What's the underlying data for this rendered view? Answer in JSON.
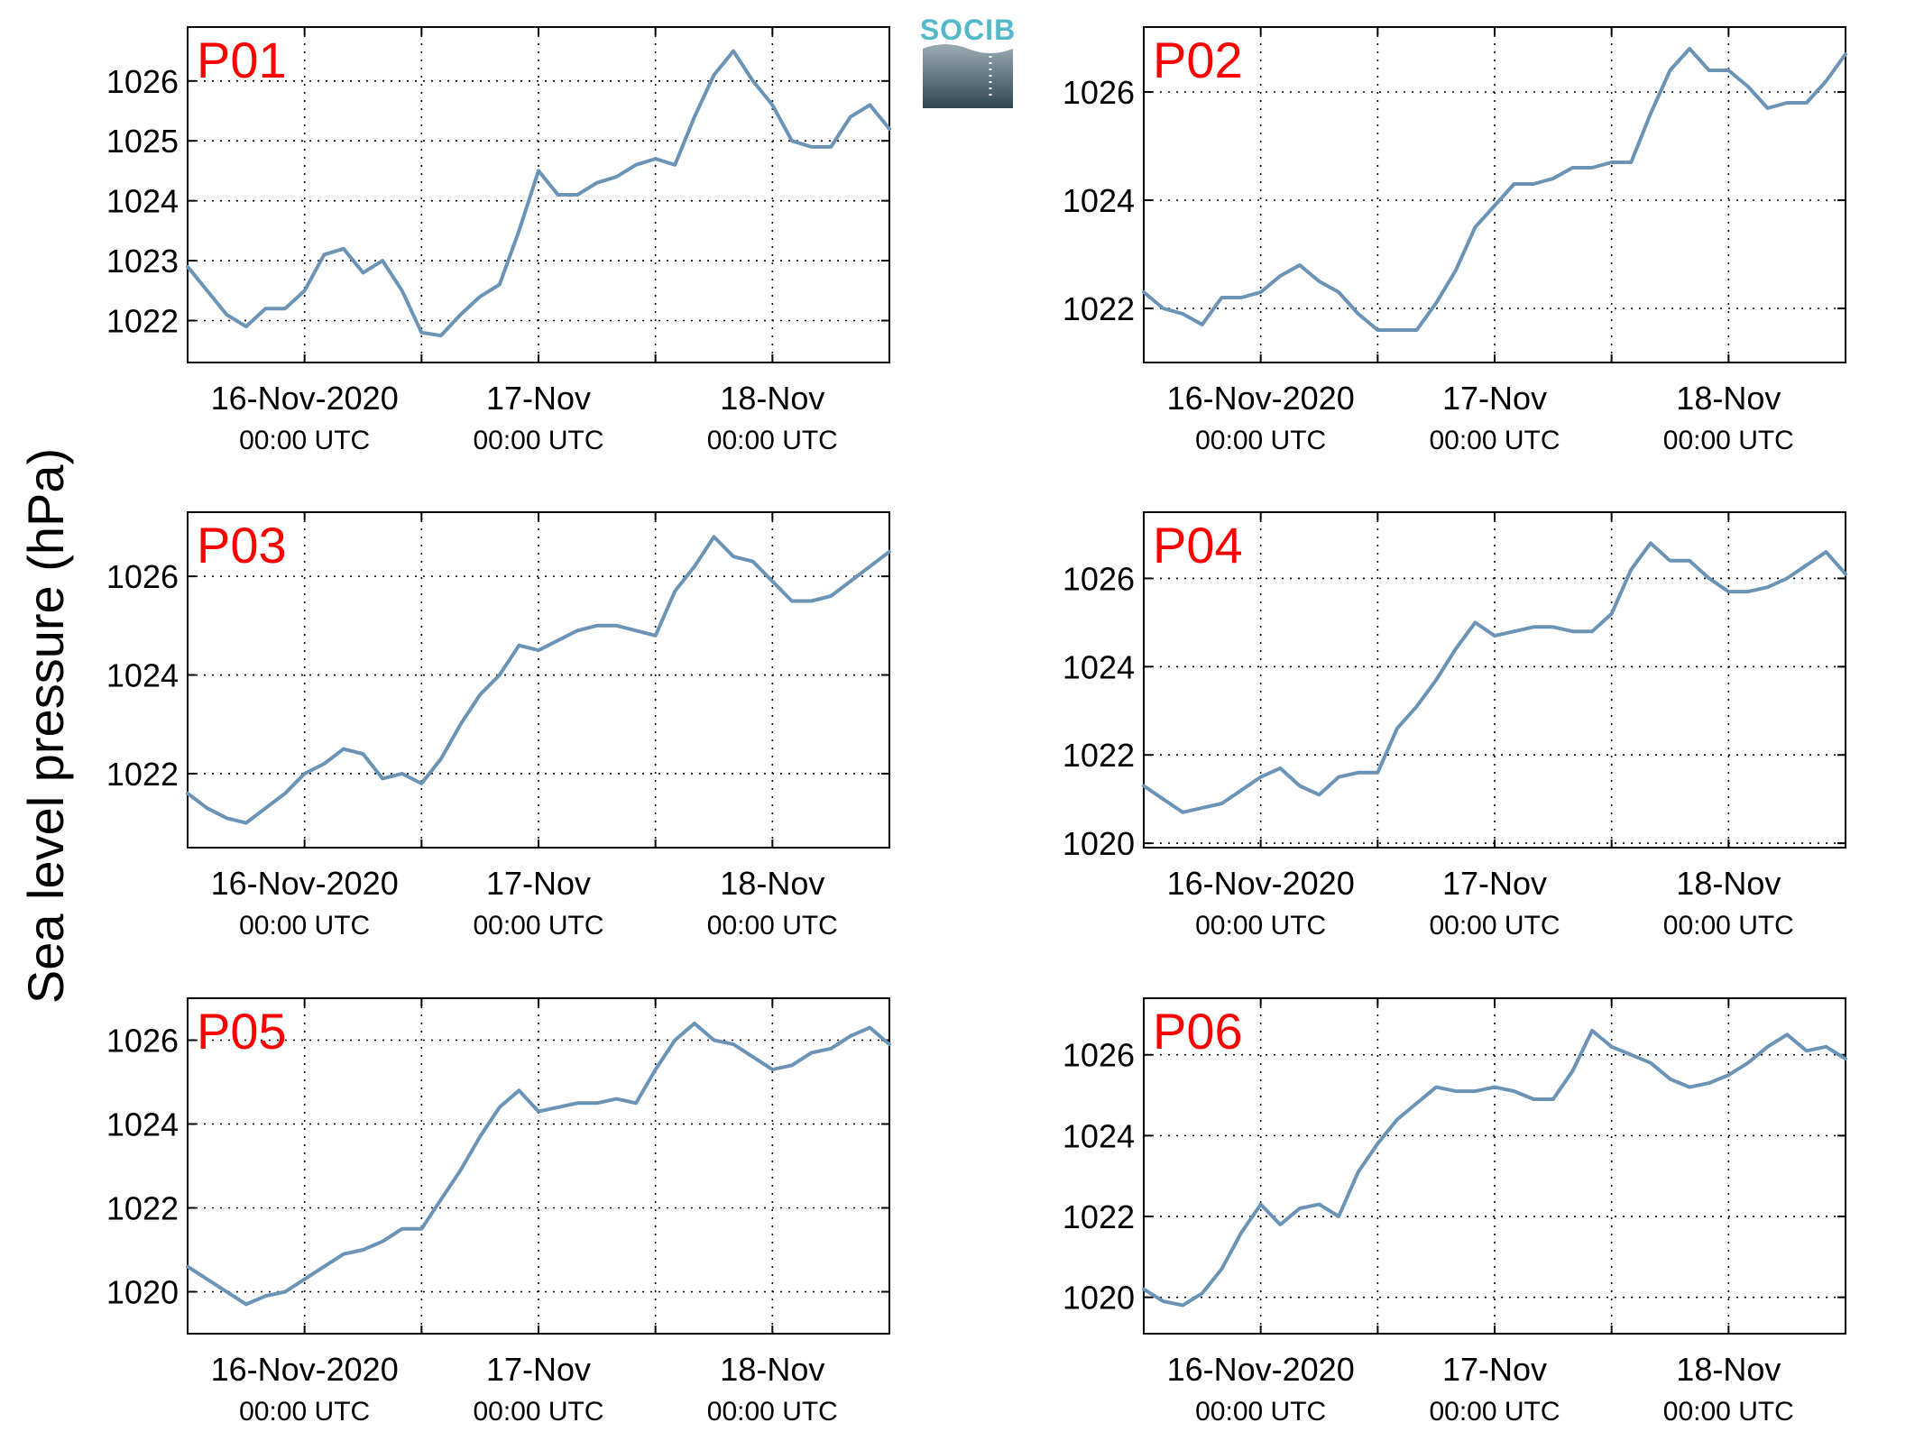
{
  "figure": {
    "ylabel": "Sea level pressure (hPa)",
    "logo_text": "SOCIB",
    "series_color": "#6a93b5",
    "panel_label_color": "#ff0000"
  },
  "chart_data": [
    {
      "type": "line",
      "panel": "P01",
      "x_ticks": [
        {
          "main": "16-Nov-2020",
          "sub": "00:00 UTC"
        },
        {
          "main": "17-Nov",
          "sub": "00:00 UTC"
        },
        {
          "main": "18-Nov",
          "sub": "00:00 UTC"
        }
      ],
      "y_ticks": [
        1022,
        1023,
        1024,
        1025,
        1026
      ],
      "ylim": [
        1021.3,
        1026.9
      ],
      "xlim_hours": [
        -12,
        60
      ],
      "grid": true,
      "x_hours": [
        -12,
        -10,
        -8,
        -6,
        -4,
        -2,
        0,
        2,
        4,
        6,
        8,
        10,
        12,
        14,
        16,
        18,
        20,
        22,
        24,
        26,
        28,
        30,
        32,
        34,
        36,
        38,
        40,
        42,
        44,
        46,
        48,
        50,
        52,
        54,
        56,
        58,
        60
      ],
      "values": [
        1022.9,
        1022.5,
        1022.1,
        1021.9,
        1022.2,
        1022.2,
        1022.5,
        1023.1,
        1023.2,
        1022.8,
        1023.0,
        1022.5,
        1021.8,
        1021.75,
        1022.1,
        1022.4,
        1022.6,
        1023.5,
        1024.5,
        1024.1,
        1024.1,
        1024.3,
        1024.4,
        1024.6,
        1024.7,
        1024.6,
        1025.4,
        1026.1,
        1026.5,
        1026.0,
        1025.6,
        1025.0,
        1024.9,
        1024.9,
        1025.4,
        1025.6,
        1025.2
      ]
    },
    {
      "type": "line",
      "panel": "P02",
      "x_ticks": [
        {
          "main": "16-Nov-2020",
          "sub": "00:00 UTC"
        },
        {
          "main": "17-Nov",
          "sub": "00:00 UTC"
        },
        {
          "main": "18-Nov",
          "sub": "00:00 UTC"
        }
      ],
      "y_ticks": [
        1022,
        1024,
        1026
      ],
      "ylim": [
        1021.0,
        1027.2
      ],
      "xlim_hours": [
        -12,
        60
      ],
      "grid": true,
      "x_hours": [
        -12,
        -10,
        -8,
        -6,
        -4,
        -2,
        0,
        2,
        4,
        6,
        8,
        10,
        12,
        14,
        16,
        18,
        20,
        22,
        24,
        26,
        28,
        30,
        32,
        34,
        36,
        38,
        40,
        42,
        44,
        46,
        48,
        50,
        52,
        54,
        56,
        58,
        60
      ],
      "values": [
        1022.3,
        1022.0,
        1021.9,
        1021.7,
        1022.2,
        1022.2,
        1022.3,
        1022.6,
        1022.8,
        1022.5,
        1022.3,
        1021.9,
        1021.6,
        1021.6,
        1021.6,
        1022.1,
        1022.7,
        1023.5,
        1023.9,
        1024.3,
        1024.3,
        1024.4,
        1024.6,
        1024.6,
        1024.7,
        1024.7,
        1025.6,
        1026.4,
        1026.8,
        1026.4,
        1026.4,
        1026.1,
        1025.7,
        1025.8,
        1025.8,
        1026.2,
        1026.7
      ]
    },
    {
      "type": "line",
      "panel": "P03",
      "x_ticks": [
        {
          "main": "16-Nov-2020",
          "sub": "00:00 UTC"
        },
        {
          "main": "17-Nov",
          "sub": "00:00 UTC"
        },
        {
          "main": "18-Nov",
          "sub": "00:00 UTC"
        }
      ],
      "y_ticks": [
        1022,
        1024,
        1026
      ],
      "ylim": [
        1020.5,
        1027.3
      ],
      "xlim_hours": [
        -12,
        60
      ],
      "grid": true,
      "x_hours": [
        -12,
        -10,
        -8,
        -6,
        -4,
        -2,
        0,
        2,
        4,
        6,
        8,
        10,
        12,
        14,
        16,
        18,
        20,
        22,
        24,
        26,
        28,
        30,
        32,
        34,
        36,
        38,
        40,
        42,
        44,
        46,
        48,
        50,
        52,
        54,
        56,
        58,
        60
      ],
      "values": [
        1021.6,
        1021.3,
        1021.1,
        1021.0,
        1021.3,
        1021.6,
        1022.0,
        1022.2,
        1022.5,
        1022.4,
        1021.9,
        1022.0,
        1021.8,
        1022.3,
        1023.0,
        1023.6,
        1024.0,
        1024.6,
        1024.5,
        1024.7,
        1024.9,
        1025.0,
        1025.0,
        1024.9,
        1024.8,
        1025.7,
        1026.2,
        1026.8,
        1026.4,
        1026.3,
        1025.9,
        1025.5,
        1025.5,
        1025.6,
        1025.9,
        1026.2,
        1026.5
      ]
    },
    {
      "type": "line",
      "panel": "P04",
      "x_ticks": [
        {
          "main": "16-Nov-2020",
          "sub": "00:00 UTC"
        },
        {
          "main": "17-Nov",
          "sub": "00:00 UTC"
        },
        {
          "main": "18-Nov",
          "sub": "00:00 UTC"
        }
      ],
      "y_ticks": [
        1020,
        1022,
        1024,
        1026
      ],
      "ylim": [
        1019.9,
        1027.5
      ],
      "xlim_hours": [
        -12,
        60
      ],
      "grid": true,
      "x_hours": [
        -12,
        -10,
        -8,
        -6,
        -4,
        -2,
        0,
        2,
        4,
        6,
        8,
        10,
        12,
        14,
        16,
        18,
        20,
        22,
        24,
        26,
        28,
        30,
        32,
        34,
        36,
        38,
        40,
        42,
        44,
        46,
        48,
        50,
        52,
        54,
        56,
        58,
        60
      ],
      "values": [
        1021.3,
        1021.0,
        1020.7,
        1020.8,
        1020.9,
        1021.2,
        1021.5,
        1021.7,
        1021.3,
        1021.1,
        1021.5,
        1021.6,
        1021.6,
        1022.6,
        1023.1,
        1023.7,
        1024.4,
        1025.0,
        1024.7,
        1024.8,
        1024.9,
        1024.9,
        1024.8,
        1024.8,
        1025.2,
        1026.2,
        1026.8,
        1026.4,
        1026.4,
        1026.0,
        1025.7,
        1025.7,
        1025.8,
        1026.0,
        1026.3,
        1026.6,
        1026.1
      ]
    },
    {
      "type": "line",
      "panel": "P05",
      "x_ticks": [
        {
          "main": "16-Nov-2020",
          "sub": "00:00 UTC"
        },
        {
          "main": "17-Nov",
          "sub": "00:00 UTC"
        },
        {
          "main": "18-Nov",
          "sub": "00:00 UTC"
        }
      ],
      "y_ticks": [
        1020,
        1022,
        1024,
        1026
      ],
      "ylim": [
        1019.0,
        1027.0
      ],
      "xlim_hours": [
        -12,
        60
      ],
      "grid": true,
      "x_hours": [
        -12,
        -10,
        -8,
        -6,
        -4,
        -2,
        0,
        2,
        4,
        6,
        8,
        10,
        12,
        14,
        16,
        18,
        20,
        22,
        24,
        26,
        28,
        30,
        32,
        34,
        36,
        38,
        40,
        42,
        44,
        46,
        48,
        50,
        52,
        54,
        56,
        58,
        60
      ],
      "values": [
        1020.6,
        1020.3,
        1020.0,
        1019.7,
        1019.9,
        1020.0,
        1020.3,
        1020.6,
        1020.9,
        1021.0,
        1021.2,
        1021.5,
        1021.5,
        1022.2,
        1022.9,
        1023.7,
        1024.4,
        1024.8,
        1024.3,
        1024.4,
        1024.5,
        1024.5,
        1024.6,
        1024.5,
        1025.3,
        1026.0,
        1026.4,
        1026.0,
        1025.9,
        1025.6,
        1025.3,
        1025.4,
        1025.7,
        1025.8,
        1026.1,
        1026.3,
        1025.9
      ]
    },
    {
      "type": "line",
      "panel": "P06",
      "x_ticks": [
        {
          "main": "16-Nov-2020",
          "sub": "00:00 UTC"
        },
        {
          "main": "17-Nov",
          "sub": "00:00 UTC"
        },
        {
          "main": "18-Nov",
          "sub": "00:00 UTC"
        }
      ],
      "y_ticks": [
        1020,
        1022,
        1024,
        1026
      ],
      "ylim": [
        1019.1,
        1027.4
      ],
      "xlim_hours": [
        -12,
        60
      ],
      "grid": true,
      "x_hours": [
        -12,
        -10,
        -8,
        -6,
        -4,
        -2,
        0,
        2,
        4,
        6,
        8,
        10,
        12,
        14,
        16,
        18,
        20,
        22,
        24,
        26,
        28,
        30,
        32,
        34,
        36,
        38,
        40,
        42,
        44,
        46,
        48,
        50,
        52,
        54,
        56,
        58,
        60
      ],
      "values": [
        1020.2,
        1019.9,
        1019.8,
        1020.1,
        1020.7,
        1021.6,
        1022.3,
        1021.8,
        1022.2,
        1022.3,
        1022.0,
        1023.1,
        1023.8,
        1024.4,
        1024.8,
        1025.2,
        1025.1,
        1025.1,
        1025.2,
        1025.1,
        1024.9,
        1024.9,
        1025.6,
        1026.6,
        1026.2,
        1026.0,
        1025.8,
        1025.4,
        1025.2,
        1025.3,
        1025.5,
        1025.8,
        1026.2,
        1026.5,
        1026.1,
        1026.2,
        1025.9
      ]
    }
  ]
}
